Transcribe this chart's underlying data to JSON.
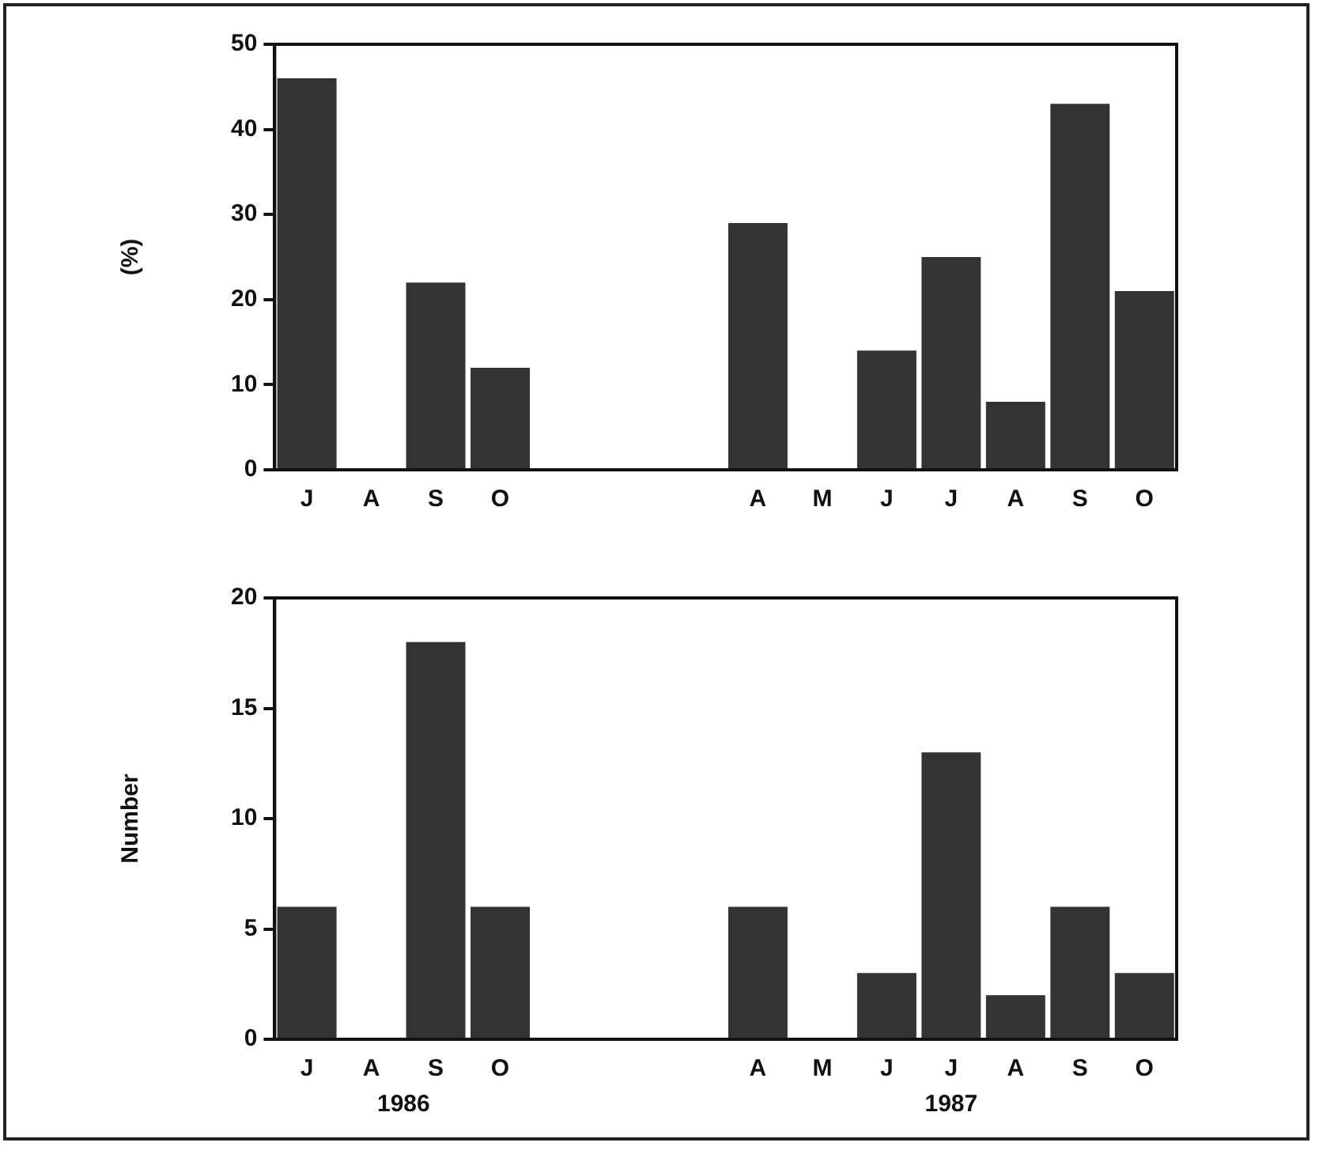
{
  "chart_data": [
    {
      "type": "bar",
      "ylabel": "(%)",
      "categories": [
        "J",
        "A",
        "S",
        "O",
        null,
        null,
        null,
        "A",
        "M",
        "J",
        "J",
        "A",
        "S",
        "O"
      ],
      "series": [
        {
          "color": "#333333",
          "values": [
            46,
            0,
            22,
            12,
            null,
            null,
            null,
            29,
            0,
            14,
            25,
            8,
            43,
            21
          ]
        }
      ],
      "ylim": [
        0,
        50
      ],
      "yticks": [
        0,
        10,
        20,
        30,
        40,
        50
      ],
      "grid": false,
      "legend": false
    },
    {
      "type": "bar",
      "ylabel": "Number",
      "categories": [
        "J",
        "A",
        "S",
        "O",
        null,
        null,
        null,
        "A",
        "M",
        "J",
        "J",
        "A",
        "S",
        "O"
      ],
      "series": [
        {
          "color": "#333333",
          "values": [
            6,
            0,
            18,
            6,
            null,
            null,
            null,
            6,
            0,
            3,
            13,
            2,
            6,
            3
          ]
        }
      ],
      "ylim": [
        0,
        20
      ],
      "yticks": [
        0,
        5,
        10,
        15,
        20
      ],
      "grid": false,
      "legend": false,
      "annotations": [
        "1986",
        "1987"
      ]
    }
  ]
}
